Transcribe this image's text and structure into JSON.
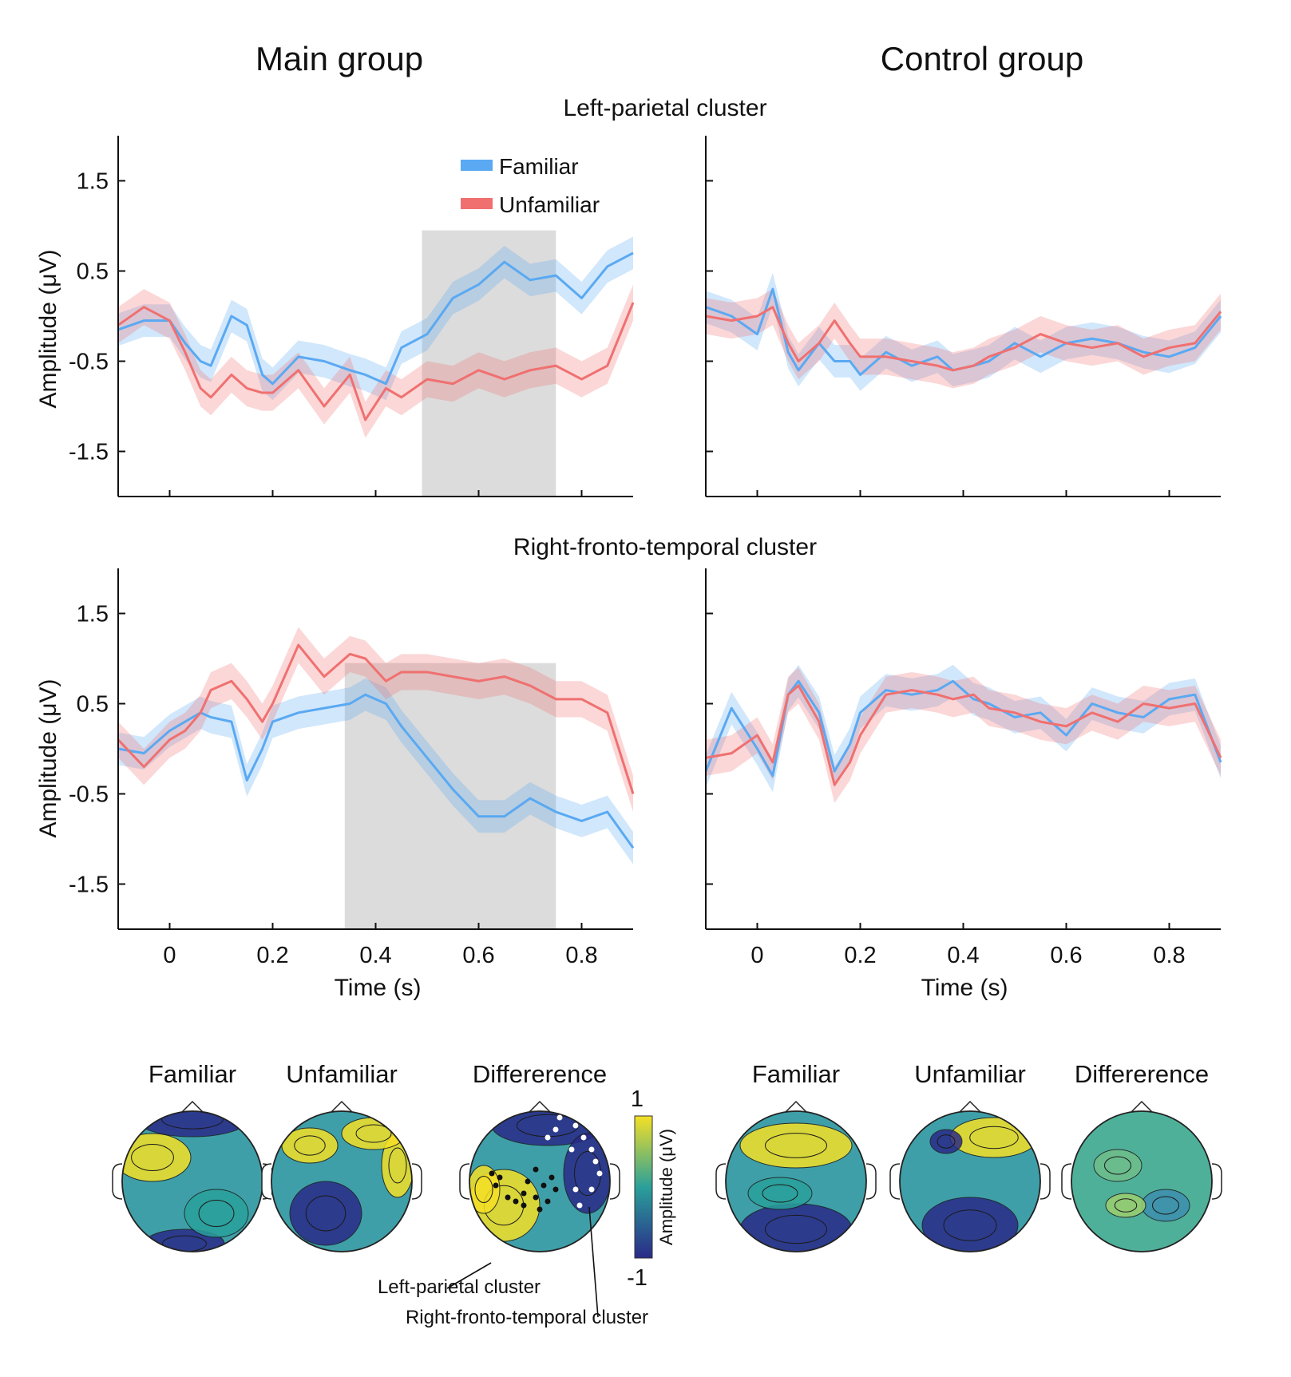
{
  "figure": {
    "group_titles": [
      "Main group",
      "Control group"
    ],
    "cluster_titles": [
      "Left-parietal cluster",
      "Right-fronto-temporal cluster"
    ]
  },
  "legend": {
    "items": [
      {
        "label": "Familiar",
        "color": "#5aa9f2"
      },
      {
        "label": "Unfamiliar",
        "color": "#f07070"
      }
    ]
  },
  "axes": {
    "ylabel": "Amplitude (μV)",
    "xlabel": "Time (s)",
    "yticks": [
      "1.5",
      "0.5",
      "-0.5",
      "-1.5"
    ],
    "xticks": [
      "0",
      "0.2",
      "0.4",
      "0.6",
      "0.8"
    ]
  },
  "topomaps": {
    "titles": [
      "Familiar",
      "Unfamiliar",
      "Differerence",
      "Familiar",
      "Unfamiliar",
      "Differerence"
    ],
    "colorbar": {
      "max": "1",
      "min": "-1",
      "label": "Amplitude (μV)"
    },
    "annotations": [
      "Left-parietal cluster",
      "Right-fronto-temporal cluster"
    ],
    "colors": {
      "low": "#2a2a88",
      "mid": "#2aa09a",
      "high": "#f5e026"
    }
  },
  "chart_data": [
    {
      "type": "line",
      "title": "",
      "group": "Main group",
      "cluster": "Left-parietal cluster",
      "xlabel": "",
      "ylabel": "Amplitude (μV)",
      "xlim": [
        -0.1,
        0.9
      ],
      "ylim": [
        -2,
        2
      ],
      "highlight": [
        0.49,
        0.75
      ],
      "x": [
        -0.1,
        -0.05,
        0,
        0.03,
        0.06,
        0.08,
        0.12,
        0.15,
        0.18,
        0.2,
        0.25,
        0.3,
        0.35,
        0.38,
        0.42,
        0.45,
        0.5,
        0.55,
        0.6,
        0.65,
        0.7,
        0.75,
        0.8,
        0.85,
        0.9
      ],
      "series": [
        {
          "name": "Familiar",
          "values": [
            -0.15,
            -0.05,
            -0.05,
            -0.3,
            -0.5,
            -0.55,
            0.0,
            -0.1,
            -0.65,
            -0.75,
            -0.45,
            -0.5,
            -0.6,
            -0.65,
            -0.75,
            -0.35,
            -0.2,
            0.2,
            0.35,
            0.6,
            0.4,
            0.45,
            0.2,
            0.55,
            0.7
          ]
        },
        {
          "name": "Unfamiliar",
          "values": [
            -0.1,
            0.1,
            -0.05,
            -0.4,
            -0.8,
            -0.9,
            -0.65,
            -0.8,
            -0.85,
            -0.85,
            -0.6,
            -1.0,
            -0.65,
            -1.15,
            -0.8,
            -0.9,
            -0.7,
            -0.75,
            -0.6,
            -0.7,
            -0.6,
            -0.55,
            -0.7,
            -0.55,
            0.15
          ]
        }
      ]
    },
    {
      "type": "line",
      "title": "",
      "group": "Control group",
      "cluster": "Left-parietal cluster",
      "xlabel": "",
      "ylabel": "",
      "xlim": [
        -0.1,
        0.9
      ],
      "ylim": [
        -2,
        2
      ],
      "x": [
        -0.1,
        -0.05,
        0,
        0.03,
        0.06,
        0.08,
        0.12,
        0.15,
        0.18,
        0.2,
        0.25,
        0.3,
        0.35,
        0.38,
        0.42,
        0.45,
        0.5,
        0.55,
        0.6,
        0.65,
        0.7,
        0.75,
        0.8,
        0.85,
        0.9
      ],
      "series": [
        {
          "name": "Familiar",
          "values": [
            0.1,
            0.0,
            -0.2,
            0.3,
            -0.4,
            -0.6,
            -0.3,
            -0.5,
            -0.5,
            -0.65,
            -0.4,
            -0.55,
            -0.45,
            -0.6,
            -0.55,
            -0.5,
            -0.3,
            -0.45,
            -0.3,
            -0.25,
            -0.3,
            -0.4,
            -0.45,
            -0.35,
            0.0
          ]
        },
        {
          "name": "Unfamiliar",
          "values": [
            0.0,
            -0.05,
            0.0,
            0.1,
            -0.3,
            -0.5,
            -0.3,
            -0.05,
            -0.3,
            -0.45,
            -0.45,
            -0.5,
            -0.55,
            -0.6,
            -0.55,
            -0.45,
            -0.35,
            -0.2,
            -0.3,
            -0.35,
            -0.3,
            -0.45,
            -0.35,
            -0.3,
            0.05
          ]
        }
      ]
    },
    {
      "type": "line",
      "title": "",
      "group": "Main group",
      "cluster": "Right-fronto-temporal cluster",
      "xlabel": "Time (s)",
      "ylabel": "Amplitude (μV)",
      "xlim": [
        -0.1,
        0.9
      ],
      "ylim": [
        -2,
        2
      ],
      "highlight": [
        0.34,
        0.75
      ],
      "x": [
        -0.1,
        -0.05,
        0,
        0.03,
        0.06,
        0.08,
        0.12,
        0.15,
        0.18,
        0.2,
        0.25,
        0.3,
        0.35,
        0.38,
        0.42,
        0.45,
        0.5,
        0.55,
        0.6,
        0.65,
        0.7,
        0.75,
        0.8,
        0.85,
        0.9
      ],
      "series": [
        {
          "name": "Familiar",
          "values": [
            0.0,
            -0.05,
            0.2,
            0.3,
            0.4,
            0.35,
            0.3,
            -0.35,
            0.0,
            0.3,
            0.4,
            0.45,
            0.5,
            0.6,
            0.5,
            0.25,
            -0.1,
            -0.45,
            -0.75,
            -0.75,
            -0.55,
            -0.7,
            -0.8,
            -0.7,
            -1.1
          ]
        },
        {
          "name": "Unfamiliar",
          "values": [
            0.1,
            -0.2,
            0.1,
            0.2,
            0.4,
            0.65,
            0.75,
            0.55,
            0.3,
            0.5,
            1.15,
            0.8,
            1.05,
            1.0,
            0.75,
            0.85,
            0.85,
            0.8,
            0.75,
            0.8,
            0.7,
            0.55,
            0.55,
            0.4,
            -0.5
          ]
        }
      ]
    },
    {
      "type": "line",
      "title": "",
      "group": "Control group",
      "cluster": "Right-fronto-temporal cluster",
      "xlabel": "Time (s)",
      "ylabel": "",
      "xlim": [
        -0.1,
        0.9
      ],
      "ylim": [
        -2,
        2
      ],
      "x": [
        -0.1,
        -0.05,
        0,
        0.03,
        0.06,
        0.08,
        0.12,
        0.15,
        0.18,
        0.2,
        0.25,
        0.3,
        0.35,
        0.38,
        0.42,
        0.45,
        0.5,
        0.55,
        0.6,
        0.65,
        0.7,
        0.75,
        0.8,
        0.85,
        0.9
      ],
      "series": [
        {
          "name": "Familiar",
          "values": [
            -0.25,
            0.45,
            0.0,
            -0.3,
            0.6,
            0.75,
            0.4,
            -0.25,
            0.05,
            0.4,
            0.65,
            0.6,
            0.65,
            0.75,
            0.55,
            0.5,
            0.35,
            0.4,
            0.15,
            0.5,
            0.4,
            0.35,
            0.55,
            0.6,
            -0.15
          ]
        },
        {
          "name": "Unfamiliar",
          "values": [
            -0.1,
            -0.05,
            0.15,
            -0.15,
            0.6,
            0.7,
            0.3,
            -0.4,
            -0.15,
            0.15,
            0.6,
            0.65,
            0.6,
            0.55,
            0.6,
            0.45,
            0.4,
            0.3,
            0.25,
            0.4,
            0.3,
            0.5,
            0.45,
            0.5,
            -0.1
          ]
        }
      ]
    }
  ]
}
